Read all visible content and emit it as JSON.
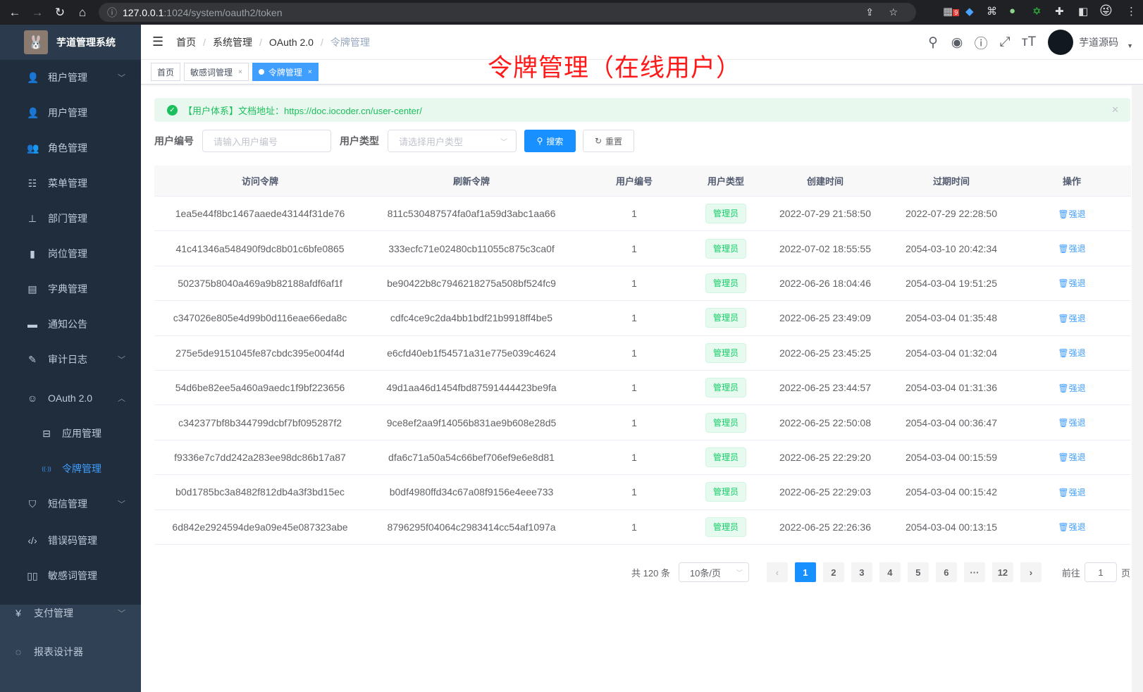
{
  "browser": {
    "host": "127.0.0.1",
    "path": ":1024/system/oauth2/token",
    "badge_count": "9"
  },
  "sidebar": {
    "title": "芋道管理系统",
    "items": [
      {
        "label": "租户管理",
        "icon": "people-icon",
        "expandable": true
      },
      {
        "label": "用户管理",
        "icon": "user-icon"
      },
      {
        "label": "角色管理",
        "icon": "peoples-icon"
      },
      {
        "label": "菜单管理",
        "icon": "tree-table-icon"
      },
      {
        "label": "部门管理",
        "icon": "tree-icon"
      },
      {
        "label": "岗位管理",
        "icon": "post-icon"
      },
      {
        "label": "字典管理",
        "icon": "dict-icon"
      },
      {
        "label": "通知公告",
        "icon": "message-icon"
      },
      {
        "label": "审计日志",
        "icon": "log-icon",
        "expandable": true
      },
      {
        "label": "OAuth 2.0",
        "icon": "robot-icon",
        "expanded": true
      },
      {
        "label": "应用管理",
        "icon": "briefcase-icon"
      },
      {
        "label": "令牌管理",
        "icon": "signal-icon",
        "active": true
      },
      {
        "label": "短信管理",
        "icon": "shield-icon",
        "expandable": true
      },
      {
        "label": "错误码管理",
        "icon": "code-icon"
      },
      {
        "label": "敏感词管理",
        "icon": "book-icon"
      },
      {
        "label": "支付管理",
        "icon": "yen-icon",
        "expandable": true
      },
      {
        "label": "报表设计器",
        "icon": "ring-icon"
      }
    ]
  },
  "breadcrumb": [
    "首页",
    "系统管理",
    "OAuth 2.0",
    "令牌管理"
  ],
  "user": {
    "name": "芋道源码"
  },
  "tags": [
    {
      "label": "首页"
    },
    {
      "label": "敏感词管理"
    },
    {
      "label": "令牌管理",
      "active": true
    }
  ],
  "annotation": "令牌管理（在线用户）",
  "alert": {
    "text": "【用户体系】文档地址：https://doc.iocoder.cn/user-center/"
  },
  "search": {
    "user_id_label": "用户编号",
    "user_id_placeholder": "请输入用户编号",
    "user_type_label": "用户类型",
    "user_type_placeholder": "请选择用户类型",
    "search_button": "搜索",
    "reset_button": "重置"
  },
  "table": {
    "headers": [
      "访问令牌",
      "刷新令牌",
      "用户编号",
      "用户类型",
      "创建时间",
      "过期时间",
      "操作"
    ],
    "rows": [
      [
        "1ea5e44f8bc1467aaede43144f31de76",
        "811c530487574fa0af1a59d3abc1aa66",
        "1",
        "管理员",
        "2022-07-29 21:58:50",
        "2022-07-29 22:28:50",
        "强退"
      ],
      [
        "41c41346a548490f9dc8b01c6bfe0865",
        "333ecfc71e02480cb11055c875c3ca0f",
        "1",
        "管理员",
        "2022-07-02 18:55:55",
        "2054-03-10 20:42:34",
        "强退"
      ],
      [
        "502375b8040a469a9b82188afdf6af1f",
        "be90422b8c7946218275a508bf524fc9",
        "1",
        "管理员",
        "2022-06-26 18:04:46",
        "2054-03-04 19:51:25",
        "强退"
      ],
      [
        "c347026e805e4d99b0d116eae66eda8c",
        "cdfc4ce9c2da4bb1bdf21b9918ff4be5",
        "1",
        "管理员",
        "2022-06-25 23:49:09",
        "2054-03-04 01:35:48",
        "强退"
      ],
      [
        "275e5de9151045fe87cbdc395e004f4d",
        "e6cfd40eb1f54571a31e775e039c4624",
        "1",
        "管理员",
        "2022-06-25 23:45:25",
        "2054-03-04 01:32:04",
        "强退"
      ],
      [
        "54d6be82ee5a460a9aedc1f9bf223656",
        "49d1aa46d1454fbd87591444423be9fa",
        "1",
        "管理员",
        "2022-06-25 23:44:57",
        "2054-03-04 01:31:36",
        "强退"
      ],
      [
        "c342377bf8b344799dcbf7bf095287f2",
        "9ce8ef2aa9f14056b831ae9b608e28d5",
        "1",
        "管理员",
        "2022-06-25 22:50:08",
        "2054-03-04 00:36:47",
        "强退"
      ],
      [
        "f9336e7c7dd242a283ee98dc86b17a87",
        "dfa6c71a50a54c66bef706ef9e6e8d81",
        "1",
        "管理员",
        "2022-06-25 22:29:20",
        "2054-03-04 00:15:59",
        "强退"
      ],
      [
        "b0d1785bc3a8482f812db4a3f3bd15ec",
        "b0df4980ffd34c67a08f9156e4eee733",
        "1",
        "管理员",
        "2022-06-25 22:29:03",
        "2054-03-04 00:15:42",
        "强退"
      ],
      [
        "6d842e2924594de9a09e45e087323abe",
        "8796295f04064c2983414cc54af1097a",
        "1",
        "管理员",
        "2022-06-25 22:26:36",
        "2054-03-04 00:13:15",
        "强退"
      ]
    ]
  },
  "pagination": {
    "total": "共 120 条",
    "page_size": "10条/页",
    "pages": [
      "1",
      "2",
      "3",
      "4",
      "5",
      "6",
      "···",
      "12"
    ],
    "current": "1",
    "goto_label": "前往",
    "goto_value": "1",
    "goto_suffix": "页"
  },
  "colors": {
    "primary": "#409eff",
    "success": "#13ce66",
    "sidebar": "#304156",
    "annotation": "#ff1a1a"
  }
}
